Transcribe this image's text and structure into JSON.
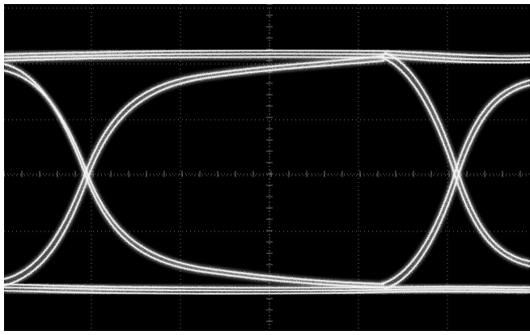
{
  "display": {
    "background_color": "#000000",
    "frame_color": "#ffffff",
    "grid_color": "#9a9a9a",
    "trace_color": "#f2f2f2",
    "grid": true,
    "grid_divisions": {
      "horizontal": 6,
      "vertical": 6
    },
    "waveform": "eye-diagram"
  }
}
